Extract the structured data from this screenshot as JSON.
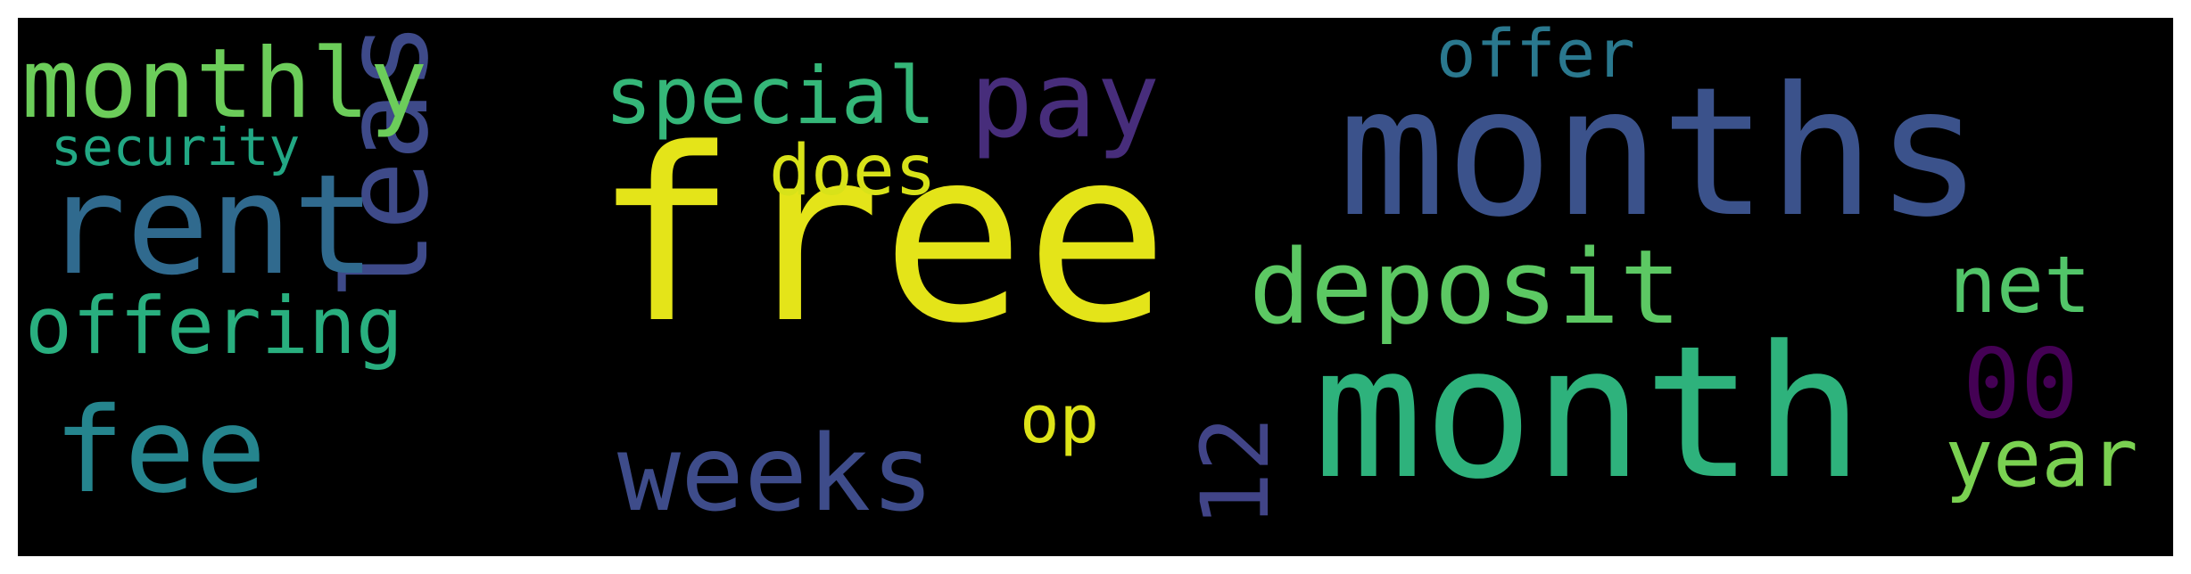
{
  "words": [
    {
      "text": "free",
      "color": "#e4e419"
    },
    {
      "text": "months",
      "color": "#3b528b"
    },
    {
      "text": "month",
      "color": "#2eb27c"
    },
    {
      "text": "lease",
      "color": "#3e4a89"
    },
    {
      "text": "rent",
      "color": "#306a8e"
    },
    {
      "text": "deposit",
      "color": "#5cc863"
    },
    {
      "text": "fee",
      "color": "#25858e"
    },
    {
      "text": "weeks",
      "color": "#3e4c8a"
    },
    {
      "text": "pay",
      "color": "#472d7b"
    },
    {
      "text": "monthly",
      "color": "#6ccd5a"
    },
    {
      "text": "special",
      "color": "#35b779"
    },
    {
      "text": "offering",
      "color": "#29af7f"
    },
    {
      "text": "12",
      "color": "#414487"
    },
    {
      "text": "00",
      "color": "#440154"
    },
    {
      "text": "net",
      "color": "#52c569"
    },
    {
      "text": "year",
      "color": "#7ad151"
    },
    {
      "text": "offer",
      "color": "#2a788e"
    },
    {
      "text": "does",
      "color": "#d8e219"
    },
    {
      "text": "op",
      "color": "#dde318"
    },
    {
      "text": "security",
      "color": "#22a884"
    }
  ]
}
